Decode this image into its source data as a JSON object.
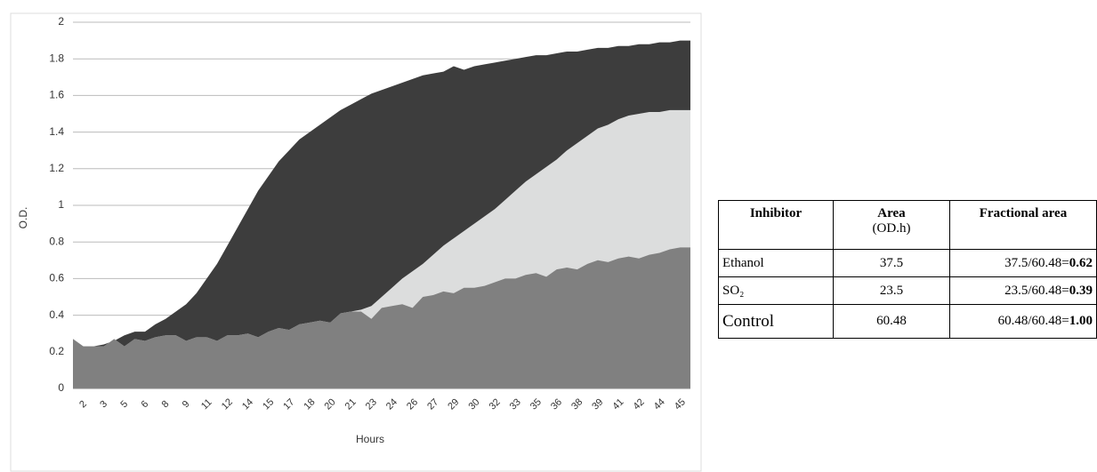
{
  "chart_data": {
    "type": "area",
    "ylabel": "O.D.",
    "xlabel": "Hours",
    "categories": [
      null,
      "2",
      null,
      "3",
      null,
      "5",
      null,
      "6",
      null,
      "8",
      null,
      "9",
      null,
      "11",
      null,
      "12",
      null,
      "14",
      null,
      "15",
      null,
      "17",
      null,
      "18",
      null,
      "20",
      null,
      "21",
      null,
      "23",
      null,
      "24",
      null,
      "26",
      null,
      "27",
      null,
      "29",
      null,
      "30",
      null,
      "32",
      null,
      "33",
      null,
      "35",
      null,
      "36",
      null,
      "38",
      null,
      "39",
      null,
      "41",
      null,
      "42",
      null,
      "44",
      null,
      "45",
      null
    ],
    "series": [
      {
        "color": "#3d3d3d",
        "values": [
          0.27,
          0.23,
          0.23,
          0.24,
          0.26,
          0.29,
          0.31,
          0.31,
          0.35,
          0.38,
          0.42,
          0.46,
          0.52,
          0.6,
          0.68,
          0.78,
          0.88,
          0.98,
          1.08,
          1.16,
          1.24,
          1.3,
          1.36,
          1.4,
          1.44,
          1.48,
          1.52,
          1.55,
          1.58,
          1.61,
          1.63,
          1.65,
          1.67,
          1.69,
          1.71,
          1.72,
          1.73,
          1.76,
          1.74,
          1.76,
          1.77,
          1.78,
          1.79,
          1.8,
          1.81,
          1.82,
          1.82,
          1.83,
          1.84,
          1.84,
          1.85,
          1.86,
          1.86,
          1.87,
          1.87,
          1.88,
          1.88,
          1.89,
          1.89,
          1.9,
          1.9
        ]
      },
      {
        "color": "#dcdddd",
        "values": [
          0.27,
          0.23,
          0.23,
          0.23,
          0.27,
          0.23,
          0.27,
          0.26,
          0.28,
          0.29,
          0.29,
          0.26,
          0.28,
          0.28,
          0.26,
          0.29,
          0.29,
          0.3,
          0.28,
          0.31,
          0.33,
          0.32,
          0.35,
          0.36,
          0.37,
          0.36,
          0.41,
          0.42,
          0.43,
          0.45,
          0.5,
          0.55,
          0.6,
          0.64,
          0.68,
          0.73,
          0.78,
          0.82,
          0.86,
          0.9,
          0.94,
          0.98,
          1.03,
          1.08,
          1.13,
          1.17,
          1.21,
          1.25,
          1.3,
          1.34,
          1.38,
          1.42,
          1.44,
          1.47,
          1.49,
          1.5,
          1.51,
          1.51,
          1.52,
          1.52,
          1.52
        ]
      },
      {
        "color": "#808080",
        "values": [
          0.27,
          0.23,
          0.23,
          0.23,
          0.27,
          0.23,
          0.27,
          0.26,
          0.28,
          0.29,
          0.29,
          0.26,
          0.28,
          0.28,
          0.26,
          0.29,
          0.29,
          0.3,
          0.28,
          0.31,
          0.33,
          0.32,
          0.35,
          0.36,
          0.37,
          0.36,
          0.41,
          0.42,
          0.42,
          0.38,
          0.44,
          0.45,
          0.46,
          0.44,
          0.5,
          0.51,
          0.53,
          0.52,
          0.55,
          0.55,
          0.56,
          0.58,
          0.6,
          0.6,
          0.62,
          0.63,
          0.61,
          0.65,
          0.66,
          0.65,
          0.68,
          0.7,
          0.69,
          0.71,
          0.72,
          0.71,
          0.73,
          0.74,
          0.76,
          0.77,
          0.77
        ]
      }
    ],
    "ylim": [
      0,
      2
    ],
    "yticks": [
      0,
      0.2,
      0.4,
      0.6,
      0.8,
      1,
      1.2,
      1.4,
      1.6,
      1.8,
      2
    ],
    "grid": true
  },
  "table": {
    "header": [
      "Inhibitor",
      [
        "Area",
        "(OD.h)"
      ],
      "Fractional area"
    ],
    "rows": [
      [
        "Ethanol",
        "37.5",
        [
          "37.5/60.48=",
          "0.62"
        ]
      ],
      [
        "SO₂",
        "23.5",
        [
          "23.5/60.48=",
          "0.39"
        ]
      ],
      [
        "Control",
        "60.48",
        [
          "60.48/60.48=",
          "1.00"
        ]
      ]
    ]
  }
}
